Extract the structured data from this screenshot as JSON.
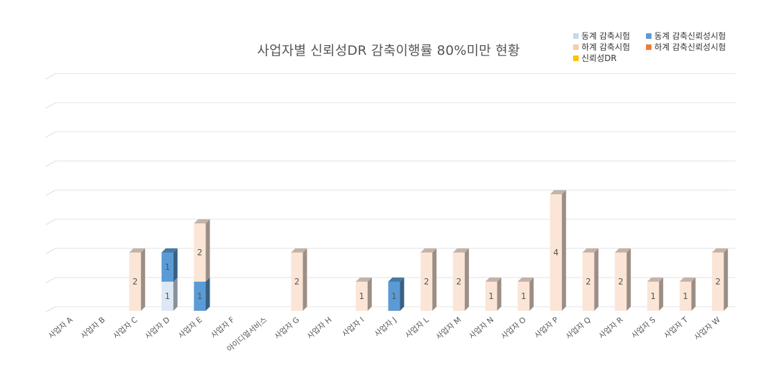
{
  "chart_data": {
    "type": "bar",
    "stacked": true,
    "title": "사업자별 신뢰성DR 감축이행률 80%미만 현황",
    "categories": [
      "사업자 A",
      "사업자 B",
      "사업자 C",
      "사업자 D",
      "사업자 E",
      "사업자 F",
      "아이디얼서비스",
      "사업자 G",
      "사업자 H",
      "사업자 I",
      "사업자 J",
      "사업자 L",
      "사업자 M",
      "사업자 N",
      "사업자 O",
      "사업자 P",
      "사업자 Q",
      "사업자 R",
      "사업자 S",
      "사업자 T",
      "사업자 W"
    ],
    "series": [
      {
        "name": "동계 감축시험",
        "color": "#dce8f5",
        "values": [
          0,
          0,
          0,
          1,
          0,
          0,
          0,
          0,
          0,
          0,
          0,
          0,
          0,
          0,
          0,
          0,
          0,
          0,
          0,
          0,
          0
        ]
      },
      {
        "name": "동계 감축신뢰성시험",
        "color": "#5b9bd5",
        "values": [
          0,
          0,
          0,
          1,
          1,
          0,
          0,
          0,
          0,
          0,
          1,
          0,
          0,
          0,
          0,
          0,
          0,
          0,
          0,
          0,
          0
        ]
      },
      {
        "name": "하계 감축시험",
        "color": "#fbe5d6",
        "values": [
          0,
          0,
          2,
          0,
          2,
          0,
          0,
          2,
          0,
          1,
          0,
          2,
          2,
          1,
          1,
          4,
          2,
          2,
          1,
          1,
          2
        ]
      },
      {
        "name": "하계 감축신뢰성시험",
        "color": "#ed7d31",
        "values": [
          0,
          0,
          0,
          0,
          0,
          0,
          0,
          0,
          0,
          0,
          0,
          0,
          0,
          0,
          0,
          0,
          0,
          0,
          0,
          0,
          0
        ]
      },
      {
        "name": "신뢰성DR",
        "color": "#ffc000",
        "values": [
          0,
          0,
          0,
          0,
          0,
          0,
          0,
          0,
          0,
          0,
          0,
          0,
          0,
          0,
          0,
          0,
          0,
          0,
          0,
          0,
          0
        ]
      }
    ],
    "ylim": [
      0,
      8
    ],
    "grid": true,
    "legend_position": "top-right",
    "data_labels": true
  }
}
